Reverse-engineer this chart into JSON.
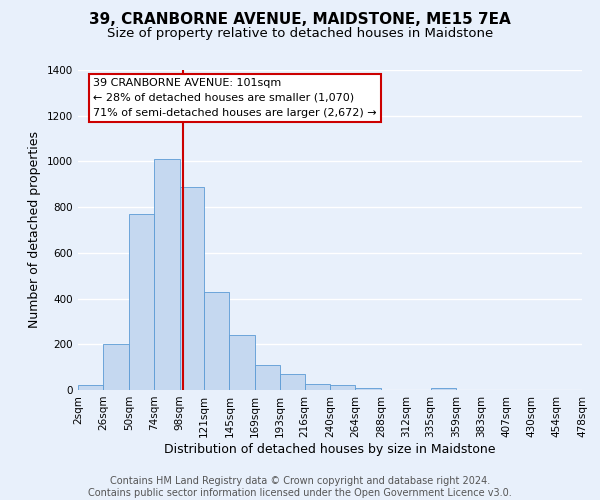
{
  "title": "39, CRANBORNE AVENUE, MAIDSTONE, ME15 7EA",
  "subtitle": "Size of property relative to detached houses in Maidstone",
  "xlabel": "Distribution of detached houses by size in Maidstone",
  "ylabel": "Number of detached properties",
  "bin_edges": [
    2,
    26,
    50,
    74,
    98,
    121,
    145,
    169,
    193,
    216,
    240,
    264,
    288,
    312,
    335,
    359,
    383,
    407,
    430,
    454,
    478
  ],
  "bar_heights": [
    20,
    200,
    770,
    1010,
    890,
    430,
    240,
    110,
    70,
    25,
    20,
    10,
    0,
    0,
    10,
    0,
    0,
    0,
    0,
    0
  ],
  "bar_color": "#c5d8f0",
  "bar_edgecolor": "#5b9bd5",
  "property_line_x": 101,
  "property_line_color": "#cc0000",
  "annotation_line1": "39 CRANBORNE AVENUE: 101sqm",
  "annotation_line2": "← 28% of detached houses are smaller (1,070)",
  "annotation_line3": "71% of semi-detached houses are larger (2,672) →",
  "annotation_box_edgecolor": "#cc0000",
  "annotation_box_facecolor": "#ffffff",
  "ylim": [
    0,
    1400
  ],
  "yticks": [
    0,
    200,
    400,
    600,
    800,
    1000,
    1200,
    1400
  ],
  "tick_labels": [
    "2sqm",
    "26sqm",
    "50sqm",
    "74sqm",
    "98sqm",
    "121sqm",
    "145sqm",
    "169sqm",
    "193sqm",
    "216sqm",
    "240sqm",
    "264sqm",
    "288sqm",
    "312sqm",
    "335sqm",
    "359sqm",
    "383sqm",
    "407sqm",
    "430sqm",
    "454sqm",
    "478sqm"
  ],
  "footer_text": "Contains HM Land Registry data © Crown copyright and database right 2024.\nContains public sector information licensed under the Open Government Licence v3.0.",
  "background_color": "#e8f0fb",
  "grid_color": "#ffffff",
  "title_fontsize": 11,
  "subtitle_fontsize": 9.5,
  "axis_label_fontsize": 9,
  "tick_fontsize": 7.5,
  "footer_fontsize": 7
}
